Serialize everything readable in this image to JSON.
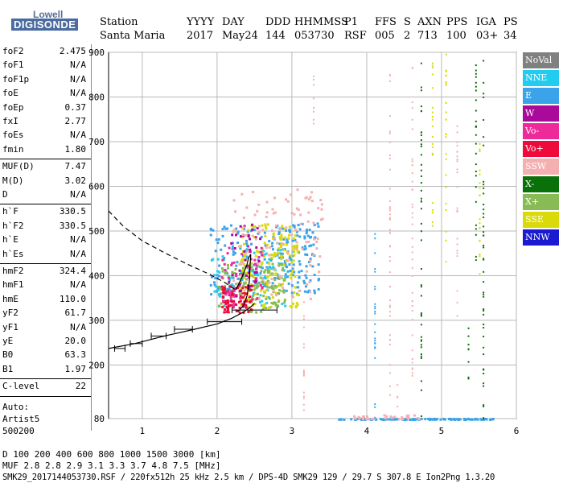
{
  "logo": {
    "top": "Lowell",
    "bottom": "DIGISONDE"
  },
  "header": {
    "labels": [
      "Station",
      "YYYY",
      "DAY",
      "DDD",
      "HHMMSS",
      "P1",
      "FFS",
      "S",
      "AXN",
      "PPS",
      "IGA",
      "PS"
    ],
    "values": [
      "Santa Maria",
      "2017",
      "May24",
      "144",
      "053730",
      "RSF",
      "005",
      "2",
      "713",
      "100",
      "03+",
      "34"
    ]
  },
  "params": [
    [
      {
        "label": "foF2",
        "value": "2.475"
      },
      {
        "label": "foF1",
        "value": "N/A"
      },
      {
        "label": "foF1p",
        "value": "N/A"
      },
      {
        "label": "foE",
        "value": "N/A"
      },
      {
        "label": "foEp",
        "value": "0.37"
      },
      {
        "label": "fxI",
        "value": "2.77"
      },
      {
        "label": "foEs",
        "value": "N/A"
      },
      {
        "label": "fmin",
        "value": "1.80"
      }
    ],
    [
      {
        "label": "MUF(D)",
        "value": "7.47"
      },
      {
        "label": "M(D)",
        "value": "3.02"
      },
      {
        "label": "D",
        "value": "N/A"
      }
    ],
    [
      {
        "label": "h`F",
        "value": "330.5"
      },
      {
        "label": "h`F2",
        "value": "330.5"
      },
      {
        "label": "h`E",
        "value": "N/A"
      },
      {
        "label": "h`Es",
        "value": "N/A"
      }
    ],
    [
      {
        "label": "hmF2",
        "value": "324.4"
      },
      {
        "label": "hmF1",
        "value": "N/A"
      },
      {
        "label": "hmE",
        "value": "110.0"
      },
      {
        "label": "yF2",
        "value": "61.7"
      },
      {
        "label": "yF1",
        "value": "N/A"
      },
      {
        "label": "yE",
        "value": "20.0"
      },
      {
        "label": "B0",
        "value": "63.3"
      },
      {
        "label": "B1",
        "value": "1.97"
      }
    ],
    [
      {
        "label": "C-level",
        "value": "22"
      }
    ]
  ],
  "auto_lines": [
    "Auto:",
    "Artist5",
    "500200"
  ],
  "footer": {
    "d_row": "D     100  200  400  600  800 1000 1500 3000 [km]",
    "muf_row": "MUF    2.8  2.8  2.9  3.1  3.3  3.7  4.8  7.5 [MHz]",
    "info_row": "SMK29_2017144053730.RSF / 220fx512h 25 kHz 2.5 km / DPS-4D SMK29 129 / 29.7 S 307.8 E Ion2Png 1.3.20"
  },
  "legend": [
    {
      "label": "NoVal",
      "color": "#808080"
    },
    {
      "label": "NNE",
      "color": "#22ccf0"
    },
    {
      "label": "E",
      "color": "#3aa3ea"
    },
    {
      "label": "W",
      "color": "#aa0a9a"
    },
    {
      "label": "Vo-",
      "color": "#ee2a9a"
    },
    {
      "label": "Vo+",
      "color": "#ee0a3a"
    },
    {
      "label": "SSW",
      "color": "#f4b0b0"
    },
    {
      "label": "X-",
      "color": "#0a700a"
    },
    {
      "label": "X+",
      "color": "#88bb55"
    },
    {
      "label": "SSE",
      "color": "#dada0a"
    },
    {
      "label": "NNW",
      "color": "#1a1ad0"
    }
  ],
  "chart_data": {
    "type": "scatter",
    "xlim": [
      0.55,
      6.0
    ],
    "ylim": [
      80,
      900
    ],
    "xticks": [
      1,
      2,
      3,
      4,
      5,
      6
    ],
    "yticks": [
      80,
      200,
      300,
      400,
      500,
      600,
      700,
      800,
      900
    ],
    "grid": true,
    "legend_position": "right",
    "profile_dashed_left": [
      [
        0.55,
        545
      ],
      [
        0.75,
        510
      ],
      [
        1.0,
        478
      ],
      [
        1.3,
        451
      ],
      [
        1.6,
        426
      ],
      [
        1.9,
        403
      ],
      [
        2.1,
        385
      ],
      [
        2.25,
        368
      ]
    ],
    "profile_solid": [
      [
        2.25,
        368
      ],
      [
        2.33,
        395
      ],
      [
        2.4,
        425
      ],
      [
        2.42,
        440
      ],
      [
        2.45,
        448
      ],
      [
        2.44,
        420
      ],
      [
        2.43,
        385
      ],
      [
        2.4,
        355
      ],
      [
        2.36,
        335
      ],
      [
        2.3,
        323
      ],
      [
        2.28,
        320
      ]
    ],
    "profile_lower": [
      [
        0.55,
        237
      ],
      [
        0.9,
        248
      ],
      [
        1.3,
        265
      ],
      [
        1.7,
        280
      ],
      [
        2.0,
        292
      ],
      [
        2.2,
        305
      ],
      [
        2.35,
        318
      ],
      [
        2.45,
        330
      ],
      [
        2.5,
        338
      ]
    ],
    "error_bars": [
      {
        "x": 0.7,
        "y": 237,
        "xerr": 0.07
      },
      {
        "x": 0.92,
        "y": 248,
        "xerr": 0.08
      },
      {
        "x": 1.22,
        "y": 265,
        "xerr": 0.1
      },
      {
        "x": 1.55,
        "y": 280,
        "xerr": 0.12
      },
      {
        "x": 2.1,
        "y": 297,
        "xerr": 0.23
      },
      {
        "x": 2.5,
        "y": 323,
        "xerr": 0.3
      }
    ],
    "clusters": [
      {
        "name": "E",
        "color": "#3aa3ea",
        "x": [
          1.9,
          3.35
        ],
        "y": [
          360,
          520
        ],
        "n": 260
      },
      {
        "name": "NNE",
        "color": "#22ccf0",
        "x": [
          1.9,
          2.9
        ],
        "y": [
          330,
          460
        ],
        "n": 80
      },
      {
        "name": "SSE",
        "color": "#dada0a",
        "x": [
          2.3,
          3.1
        ],
        "y": [
          330,
          520
        ],
        "n": 180
      },
      {
        "name": "X+",
        "color": "#88bb55",
        "x": [
          2.0,
          2.9
        ],
        "y": [
          320,
          430
        ],
        "n": 120
      },
      {
        "name": "Vo+",
        "color": "#ee0a3a",
        "x": [
          2.05,
          2.45
        ],
        "y": [
          320,
          380
        ],
        "n": 90
      },
      {
        "name": "Vo-",
        "color": "#ee2a9a",
        "x": [
          2.05,
          2.6
        ],
        "y": [
          330,
          470
        ],
        "n": 50
      },
      {
        "name": "W",
        "color": "#aa0a9a",
        "x": [
          2.1,
          2.6
        ],
        "y": [
          350,
          520
        ],
        "n": 40
      },
      {
        "name": "SSW",
        "color": "#f4b0b0",
        "x": [
          2.2,
          3.4
        ],
        "y": [
          350,
          600
        ],
        "n": 110
      },
      {
        "name": "E",
        "color": "#3aa3ea",
        "x": [
          3.6,
          5.7
        ],
        "y": [
          80,
          82
        ],
        "n": 120
      },
      {
        "name": "SSW",
        "color": "#f4b0b0",
        "x": [
          3.8,
          4.7
        ],
        "y": [
          80,
          90
        ],
        "n": 30
      }
    ],
    "columns": [
      {
        "x": 3.15,
        "y": [
          100,
          380
        ],
        "color": "#f4b0b0"
      },
      {
        "x": 3.28,
        "y": [
          720,
          860
        ],
        "color": "#f4b0b0"
      },
      {
        "x": 4.3,
        "y": [
          120,
          870
        ],
        "color": "#f4b0b0"
      },
      {
        "x": 4.6,
        "y": [
          160,
          870
        ],
        "color": "#f4b0b0"
      },
      {
        "x": 4.72,
        "y": [
          80,
          880
        ],
        "color": "#0a700a"
      },
      {
        "x": 4.87,
        "y": [
          500,
          880
        ],
        "color": "#dada0a"
      },
      {
        "x": 5.45,
        "y": [
          420,
          890
        ],
        "color": "#0a700a"
      },
      {
        "x": 5.5,
        "y": [
          380,
          700
        ],
        "color": "#dada0a"
      },
      {
        "x": 5.05,
        "y": [
          430,
          900
        ],
        "color": "#dada0a"
      },
      {
        "x": 5.2,
        "y": [
          300,
          740
        ],
        "color": "#f4b0b0"
      },
      {
        "x": 5.35,
        "y": [
          150,
          300
        ],
        "color": "#0a700a"
      },
      {
        "x": 5.55,
        "y": [
          80,
          890
        ],
        "color": "#0a700a"
      },
      {
        "x": 4.1,
        "y": [
          80,
          520
        ],
        "color": "#3aa3ea"
      },
      {
        "x": 4.4,
        "y": [
          80,
          160
        ],
        "color": "#f4b0b0"
      }
    ]
  }
}
